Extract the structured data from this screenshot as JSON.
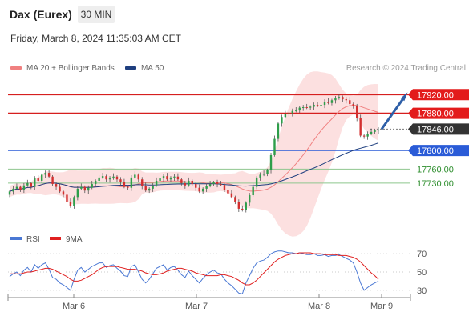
{
  "header": {
    "title": "Dax (Eurex)",
    "timeframe": "30 MIN",
    "datetime": "Friday, March 8, 2024 11:35:03 AM CET"
  },
  "legend": {
    "bollinger": {
      "label": "MA 20 + Bollinger Bands",
      "color": "#f08080"
    },
    "ma50": {
      "label": "MA 50",
      "color": "#1f3f7f"
    },
    "credit": "Research © 2024 Trading Central"
  },
  "rsi_legend": {
    "rsi": {
      "label": "RSI",
      "color": "#4a78d4"
    },
    "ma9": {
      "label": "9MA",
      "color": "#e02020"
    }
  },
  "chart_data": [
    {
      "type": "candlestick",
      "title": "Dax (Eurex)",
      "timeframe": "30 MIN",
      "x_tick_labels": [
        "Mar 6",
        "Mar 7",
        "Mar 8",
        "Mar 9"
      ],
      "ylim": [
        17625,
        17960
      ],
      "current_price": 17846.0,
      "levels": [
        {
          "value": 17920.0,
          "label": "17920.00",
          "kind": "resistance",
          "style": "box-red"
        },
        {
          "value": 17880.0,
          "label": "17880.00",
          "kind": "resistance",
          "style": "box-red"
        },
        {
          "value": 17846.0,
          "label": "17846.00",
          "kind": "last-price",
          "style": "box-dark"
        },
        {
          "value": 17800.0,
          "label": "17800.00",
          "kind": "pivot",
          "style": "box-blue"
        },
        {
          "value": 17760.0,
          "label": "17760.00",
          "kind": "support",
          "style": "text-green"
        },
        {
          "value": 17730.0,
          "label": "17730.00",
          "kind": "support",
          "style": "text-green"
        }
      ],
      "price_closes": [
        17712,
        17718,
        17722,
        17716,
        17725,
        17730,
        17722,
        17740,
        17735,
        17748,
        17752,
        17744,
        17728,
        17722,
        17712,
        17705,
        17690,
        17680,
        17700,
        17718,
        17722,
        17714,
        17720,
        17728,
        17735,
        17742,
        17745,
        17738,
        17740,
        17744,
        17738,
        17732,
        17722,
        17720,
        17742,
        17748,
        17738,
        17724,
        17714,
        17718,
        17725,
        17735,
        17740,
        17745,
        17738,
        17742,
        17744,
        17738,
        17730,
        17725,
        17735,
        17728,
        17720,
        17712,
        17718,
        17724,
        17728,
        17732,
        17728,
        17726,
        17716,
        17708,
        17700,
        17690,
        17675,
        17672,
        17688,
        17704,
        17722,
        17742,
        17748,
        17750,
        17758,
        17790,
        17825,
        17858,
        17872,
        17878,
        17880,
        17885,
        17886,
        17892,
        17893,
        17892,
        17894,
        17898,
        17896,
        17898,
        17905,
        17902,
        17908,
        17912,
        17915,
        17910,
        17908,
        17900,
        17895,
        17870,
        17832,
        17830,
        17836,
        17840,
        17843,
        17845
      ],
      "price_opens": [
        17705,
        17712,
        17718,
        17722,
        17716,
        17725,
        17730,
        17722,
        17740,
        17735,
        17748,
        17752,
        17744,
        17728,
        17722,
        17712,
        17705,
        17690,
        17680,
        17700,
        17718,
        17722,
        17714,
        17720,
        17728,
        17735,
        17742,
        17745,
        17738,
        17740,
        17744,
        17738,
        17732,
        17722,
        17720,
        17742,
        17748,
        17738,
        17724,
        17714,
        17718,
        17725,
        17735,
        17740,
        17745,
        17738,
        17742,
        17744,
        17738,
        17730,
        17725,
        17735,
        17728,
        17720,
        17712,
        17718,
        17724,
        17728,
        17732,
        17728,
        17726,
        17716,
        17708,
        17700,
        17690,
        17675,
        17672,
        17688,
        17704,
        17722,
        17742,
        17748,
        17750,
        17758,
        17790,
        17825,
        17858,
        17872,
        17878,
        17880,
        17885,
        17886,
        17892,
        17893,
        17892,
        17894,
        17898,
        17896,
        17898,
        17905,
        17902,
        17908,
        17912,
        17915,
        17910,
        17908,
        17900,
        17895,
        17870,
        17832,
        17830,
        17836,
        17840,
        17843
      ],
      "projection": {
        "from": 17846,
        "to": 17920,
        "color": "#2e5fa8"
      }
    },
    {
      "type": "line",
      "title": "RSI",
      "series": [
        {
          "name": "RSI",
          "color": "#4a78d4",
          "values": [
            45,
            48,
            50,
            46,
            52,
            55,
            50,
            58,
            54,
            58,
            60,
            53,
            44,
            42,
            38,
            36,
            33,
            30,
            42,
            52,
            55,
            50,
            53,
            56,
            58,
            60,
            60,
            55,
            57,
            58,
            54,
            51,
            46,
            45,
            56,
            58,
            50,
            42,
            38,
            42,
            48,
            54,
            56,
            58,
            52,
            55,
            56,
            52,
            47,
            44,
            51,
            46,
            42,
            38,
            43,
            47,
            50,
            52,
            49,
            48,
            42,
            38,
            35,
            31,
            27,
            26,
            38,
            46,
            54,
            60,
            62,
            63,
            66,
            70,
            72,
            73,
            73,
            72,
            71,
            71,
            70,
            71,
            70,
            69,
            69,
            70,
            68,
            68,
            69,
            67,
            68,
            68,
            69,
            67,
            65,
            63,
            60,
            50,
            38,
            30,
            33,
            36,
            38,
            40
          ]
        },
        {
          "name": "9MA",
          "color": "#e02020",
          "values": [
            48,
            48,
            48,
            48,
            49,
            50,
            50,
            51,
            52,
            53,
            54,
            54,
            53,
            51,
            49,
            47,
            45,
            42,
            40,
            40,
            41,
            43,
            45,
            47,
            50,
            53,
            55,
            56,
            56,
            56,
            56,
            55,
            54,
            53,
            53,
            53,
            52,
            51,
            49,
            48,
            47,
            47,
            48,
            49,
            51,
            52,
            53,
            54,
            54,
            53,
            52,
            51,
            49,
            48,
            47,
            46,
            46,
            46,
            46,
            47,
            47,
            46,
            45,
            43,
            41,
            38,
            36,
            36,
            38,
            41,
            45,
            49,
            53,
            57,
            61,
            64,
            66,
            68,
            69,
            70,
            70,
            71,
            71,
            71,
            71,
            70,
            70,
            70,
            69,
            69,
            69,
            69,
            68,
            68,
            68,
            67,
            66,
            64,
            61,
            57,
            53,
            49,
            46,
            42
          ]
        }
      ],
      "ylim": [
        22,
        78
      ],
      "y_ticks": [
        30,
        50,
        70
      ],
      "guides": [
        30,
        50,
        70
      ],
      "x_tick_labels": [
        "Mar 6",
        "Mar 7",
        "Mar 8",
        "Mar 9"
      ]
    }
  ]
}
